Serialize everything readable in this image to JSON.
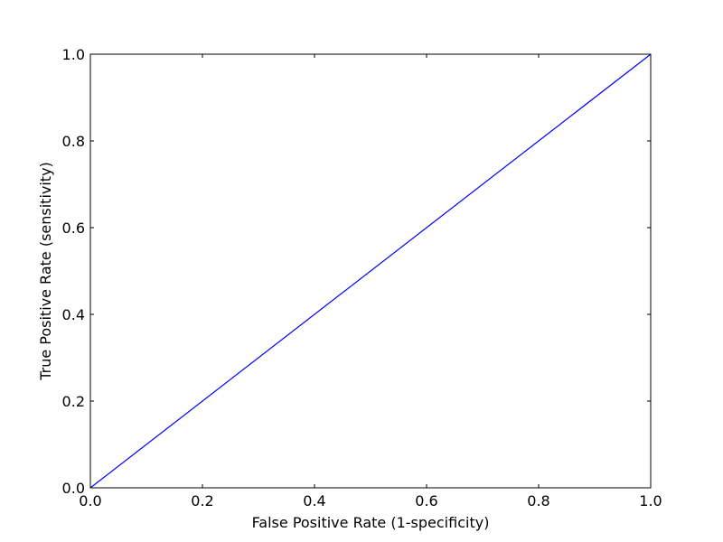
{
  "chart_data": {
    "type": "line",
    "title": "",
    "xlabel": "False Positive Rate (1-specificity)",
    "ylabel": "True Positive Rate (sensitivity)",
    "xlim": [
      0.0,
      1.0
    ],
    "ylim": [
      0.0,
      1.0
    ],
    "grid": false,
    "x_ticks": [
      "0.0",
      "0.2",
      "0.4",
      "0.6",
      "0.8",
      "1.0"
    ],
    "y_ticks": [
      "0.0",
      "0.2",
      "0.4",
      "0.6",
      "0.8",
      "1.0"
    ],
    "series": [
      {
        "color": "#0000ff",
        "x": [
          0.0,
          1.0
        ],
        "y": [
          0.0,
          1.0
        ]
      }
    ]
  }
}
